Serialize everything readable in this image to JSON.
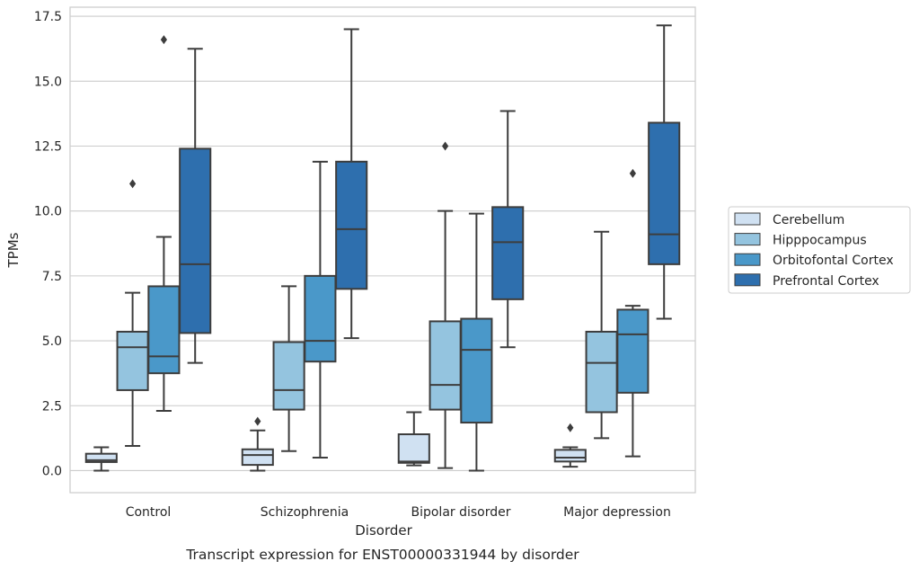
{
  "chart_data": {
    "type": "box",
    "xlabel": "Disorder",
    "ylabel": "TPMs",
    "caption": "Transcript expression for ENST00000331944 by disorder",
    "ylim": [
      -0.85,
      17.85
    ],
    "yticks": [
      0.0,
      2.5,
      5.0,
      7.5,
      10.0,
      12.5,
      15.0,
      17.5
    ],
    "ytick_labels": [
      "0.0",
      "2.5",
      "5.0",
      "7.5",
      "10.0",
      "12.5",
      "15.0",
      "17.5"
    ],
    "grid": "horizontal",
    "legend_position": "outside-right",
    "categories": [
      "Control",
      "Schizophrenia",
      "Bipolar disorder",
      "Major depression"
    ],
    "series": [
      {
        "name": "Cerebellum",
        "color": "#d0e1f2",
        "boxes": [
          {
            "whislo": 0.0,
            "q1": 0.33,
            "med": 0.4,
            "q3": 0.65,
            "whishi": 0.9,
            "fliers": []
          },
          {
            "whislo": 0.0,
            "q1": 0.22,
            "med": 0.6,
            "q3": 0.82,
            "whishi": 1.55,
            "fliers": [
              1.9
            ]
          },
          {
            "whislo": 0.2,
            "q1": 0.3,
            "med": 0.35,
            "q3": 1.4,
            "whishi": 2.25,
            "fliers": []
          },
          {
            "whislo": 0.15,
            "q1": 0.35,
            "med": 0.5,
            "q3": 0.8,
            "whishi": 0.9,
            "fliers": [
              1.65
            ]
          }
        ]
      },
      {
        "name": "Hipppocampus",
        "color": "#94c4df",
        "boxes": [
          {
            "whislo": 0.95,
            "q1": 3.1,
            "med": 4.75,
            "q3": 5.35,
            "whishi": 6.85,
            "fliers": [
              11.05
            ]
          },
          {
            "whislo": 0.75,
            "q1": 2.35,
            "med": 3.1,
            "q3": 4.95,
            "whishi": 7.1,
            "fliers": []
          },
          {
            "whislo": 0.1,
            "q1": 2.35,
            "med": 3.3,
            "q3": 5.75,
            "whishi": 10.0,
            "fliers": [
              12.5
            ]
          },
          {
            "whislo": 1.25,
            "q1": 2.25,
            "med": 4.15,
            "q3": 5.35,
            "whishi": 9.2,
            "fliers": []
          }
        ]
      },
      {
        "name": "Orbitofontal Cortex",
        "color": "#4a98c9",
        "boxes": [
          {
            "whislo": 2.3,
            "q1": 3.75,
            "med": 4.4,
            "q3": 7.1,
            "whishi": 9.0,
            "fliers": [
              16.6
            ]
          },
          {
            "whislo": 0.5,
            "q1": 4.2,
            "med": 5.0,
            "q3": 7.5,
            "whishi": 11.9,
            "fliers": []
          },
          {
            "whislo": 0.0,
            "q1": 1.85,
            "med": 4.65,
            "q3": 5.85,
            "whishi": 9.9,
            "fliers": []
          },
          {
            "whislo": 0.55,
            "q1": 3.0,
            "med": 5.25,
            "q3": 6.2,
            "whishi": 6.35,
            "fliers": [
              11.45
            ]
          }
        ]
      },
      {
        "name": "Prefrontal Cortex",
        "color": "#2e6fae",
        "boxes": [
          {
            "whislo": 4.15,
            "q1": 5.3,
            "med": 7.95,
            "q3": 12.4,
            "whishi": 16.25,
            "fliers": []
          },
          {
            "whislo": 5.1,
            "q1": 7.0,
            "med": 9.3,
            "q3": 11.9,
            "whishi": 17.0,
            "fliers": []
          },
          {
            "whislo": 4.75,
            "q1": 6.6,
            "med": 8.8,
            "q3": 10.15,
            "whishi": 13.85,
            "fliers": []
          },
          {
            "whislo": 5.85,
            "q1": 7.95,
            "med": 9.1,
            "q3": 13.4,
            "whishi": 17.15,
            "fliers": []
          }
        ]
      }
    ]
  }
}
